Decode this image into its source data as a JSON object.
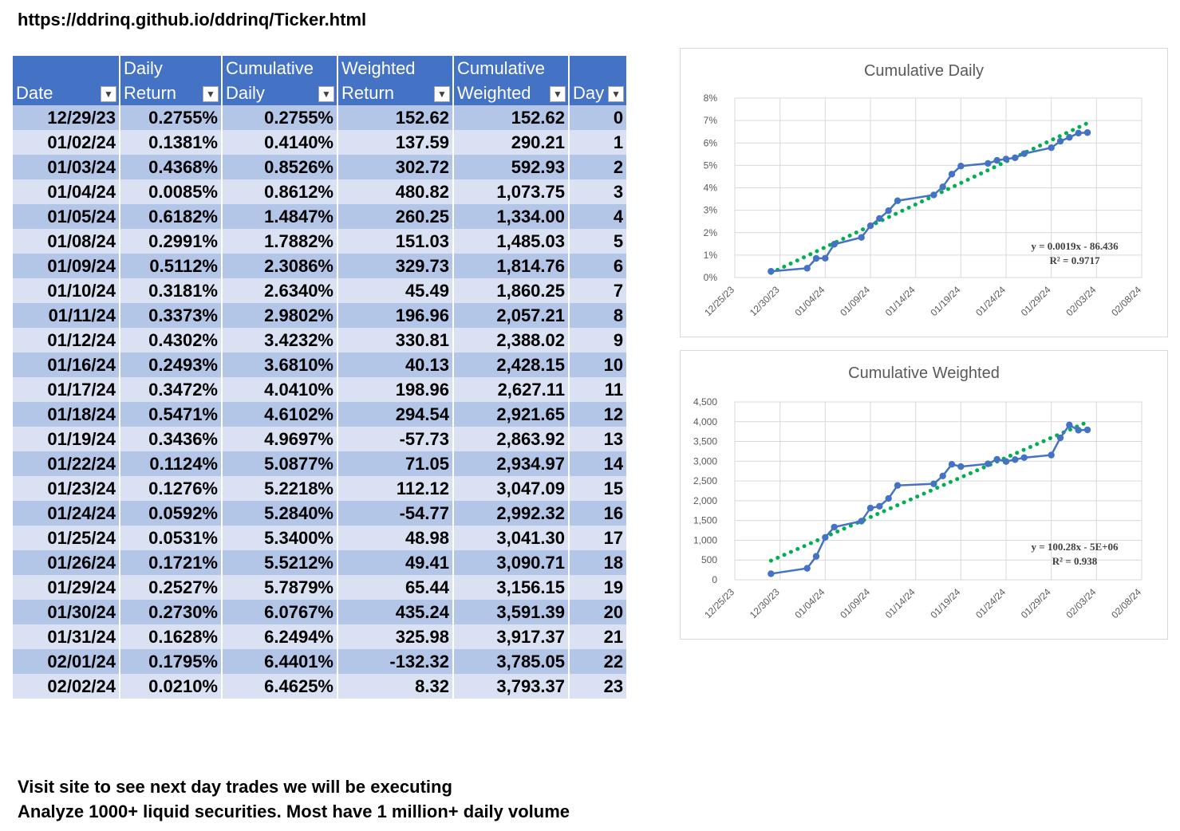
{
  "url": "https://ddrinq.github.io/ddrinq/Ticker.html",
  "footer": {
    "line1": "Visit site to see next day trades we will be executing",
    "line2": "Analyze 1000+ liquid securities.  Most have 1 million+ daily volume"
  },
  "table": {
    "headers": [
      {
        "line1": "",
        "line2": "Date"
      },
      {
        "line1": "Daily",
        "line2": "Return"
      },
      {
        "line1": "Cumulative",
        "line2": "Daily"
      },
      {
        "line1": "Weighted",
        "line2": "Return"
      },
      {
        "line1": "Cumulative",
        "line2": "Weighted"
      },
      {
        "line1": "",
        "line2": "Day"
      }
    ],
    "rows": [
      [
        "12/29/23",
        "0.2755%",
        "0.2755%",
        "152.62",
        "152.62",
        "0"
      ],
      [
        "01/02/24",
        "0.1381%",
        "0.4140%",
        "137.59",
        "290.21",
        "1"
      ],
      [
        "01/03/24",
        "0.4368%",
        "0.8526%",
        "302.72",
        "592.93",
        "2"
      ],
      [
        "01/04/24",
        "0.0085%",
        "0.8612%",
        "480.82",
        "1,073.75",
        "3"
      ],
      [
        "01/05/24",
        "0.6182%",
        "1.4847%",
        "260.25",
        "1,334.00",
        "4"
      ],
      [
        "01/08/24",
        "0.2991%",
        "1.7882%",
        "151.03",
        "1,485.03",
        "5"
      ],
      [
        "01/09/24",
        "0.5112%",
        "2.3086%",
        "329.73",
        "1,814.76",
        "6"
      ],
      [
        "01/10/24",
        "0.3181%",
        "2.6340%",
        "45.49",
        "1,860.25",
        "7"
      ],
      [
        "01/11/24",
        "0.3373%",
        "2.9802%",
        "196.96",
        "2,057.21",
        "8"
      ],
      [
        "01/12/24",
        "0.4302%",
        "3.4232%",
        "330.81",
        "2,388.02",
        "9"
      ],
      [
        "01/16/24",
        "0.2493%",
        "3.6810%",
        "40.13",
        "2,428.15",
        "10"
      ],
      [
        "01/17/24",
        "0.3472%",
        "4.0410%",
        "198.96",
        "2,627.11",
        "11"
      ],
      [
        "01/18/24",
        "0.5471%",
        "4.6102%",
        "294.54",
        "2,921.65",
        "12"
      ],
      [
        "01/19/24",
        "0.3436%",
        "4.9697%",
        "-57.73",
        "2,863.92",
        "13"
      ],
      [
        "01/22/24",
        "0.1124%",
        "5.0877%",
        "71.05",
        "2,934.97",
        "14"
      ],
      [
        "01/23/24",
        "0.1276%",
        "5.2218%",
        "112.12",
        "3,047.09",
        "15"
      ],
      [
        "01/24/24",
        "0.0592%",
        "5.2840%",
        "-54.77",
        "2,992.32",
        "16"
      ],
      [
        "01/25/24",
        "0.0531%",
        "5.3400%",
        "48.98",
        "3,041.30",
        "17"
      ],
      [
        "01/26/24",
        "0.1721%",
        "5.5212%",
        "49.41",
        "3,090.71",
        "18"
      ],
      [
        "01/29/24",
        "0.2527%",
        "5.7879%",
        "65.44",
        "3,156.15",
        "19"
      ],
      [
        "01/30/24",
        "0.2730%",
        "6.0767%",
        "435.24",
        "3,591.39",
        "20"
      ],
      [
        "01/31/24",
        "0.1628%",
        "6.2494%",
        "325.98",
        "3,917.37",
        "21"
      ],
      [
        "02/01/24",
        "0.1795%",
        "6.4401%",
        "-132.32",
        "3,785.05",
        "22"
      ],
      [
        "02/02/24",
        "0.0210%",
        "6.4625%",
        "8.32",
        "3,793.37",
        "23"
      ]
    ]
  },
  "colors": {
    "header": "#4472c4",
    "row_dark": "#b4c6e7",
    "row_light": "#d9e1f2",
    "series": "#4472c4",
    "trend": "#00b050"
  },
  "icons": {
    "filter": "dropdown-arrow-icon"
  },
  "chart_data": [
    {
      "type": "line",
      "title": "Cumulative Daily",
      "x": [
        "12/29/23",
        "01/02/24",
        "01/03/24",
        "01/04/24",
        "01/05/24",
        "01/08/24",
        "01/09/24",
        "01/10/24",
        "01/11/24",
        "01/12/24",
        "01/16/24",
        "01/17/24",
        "01/18/24",
        "01/19/24",
        "01/22/24",
        "01/23/24",
        "01/24/24",
        "01/25/24",
        "01/26/24",
        "01/29/24",
        "01/30/24",
        "01/31/24",
        "02/01/24",
        "02/02/24"
      ],
      "series": [
        {
          "values": [
            0.2755,
            0.414,
            0.8526,
            0.8612,
            1.4847,
            1.7882,
            2.3086,
            2.634,
            2.9802,
            3.4232,
            3.681,
            4.041,
            4.6102,
            4.9697,
            5.0877,
            5.2218,
            5.284,
            5.34,
            5.5212,
            5.7879,
            6.0767,
            6.2494,
            6.4401,
            6.4625
          ]
        }
      ],
      "trendline": {
        "type": "linear",
        "equation": "y = 0.0019x - 86.436",
        "r2": "R² = 0.9717"
      },
      "ylim": [
        0,
        8
      ],
      "yticks": [
        "0%",
        "1%",
        "2%",
        "3%",
        "4%",
        "5%",
        "6%",
        "7%",
        "8%"
      ],
      "xticks": [
        "12/25/23",
        "12/30/23",
        "01/04/24",
        "01/09/24",
        "01/14/24",
        "01/19/24",
        "01/24/24",
        "01/29/24",
        "02/03/24",
        "02/08/24"
      ],
      "xlim": [
        "12/25/23",
        "02/08/24"
      ],
      "grid": true
    },
    {
      "type": "line",
      "title": "Cumulative Weighted",
      "x": [
        "12/29/23",
        "01/02/24",
        "01/03/24",
        "01/04/24",
        "01/05/24",
        "01/08/24",
        "01/09/24",
        "01/10/24",
        "01/11/24",
        "01/12/24",
        "01/16/24",
        "01/17/24",
        "01/18/24",
        "01/19/24",
        "01/22/24",
        "01/23/24",
        "01/24/24",
        "01/25/24",
        "01/26/24",
        "01/29/24",
        "01/30/24",
        "01/31/24",
        "02/01/24",
        "02/02/24"
      ],
      "series": [
        {
          "values": [
            152.62,
            290.21,
            592.93,
            1073.75,
            1334.0,
            1485.03,
            1814.76,
            1860.25,
            2057.21,
            2388.02,
            2428.15,
            2627.11,
            2921.65,
            2863.92,
            2934.97,
            3047.09,
            2992.32,
            3041.3,
            3090.71,
            3156.15,
            3591.39,
            3917.37,
            3785.05,
            3793.37
          ]
        }
      ],
      "trendline": {
        "type": "linear",
        "equation": "y = 100.28x - 5E+06",
        "r2": "R² = 0.938"
      },
      "ylim": [
        0,
        4500
      ],
      "yticks": [
        "0",
        "500",
        "1,000",
        "1,500",
        "2,000",
        "2,500",
        "3,000",
        "3,500",
        "4,000",
        "4,500"
      ],
      "xticks": [
        "12/25/23",
        "12/30/23",
        "01/04/24",
        "01/09/24",
        "01/14/24",
        "01/19/24",
        "01/24/24",
        "01/29/24",
        "02/03/24",
        "02/08/24"
      ],
      "xlim": [
        "12/25/23",
        "02/08/24"
      ],
      "grid": true
    }
  ]
}
